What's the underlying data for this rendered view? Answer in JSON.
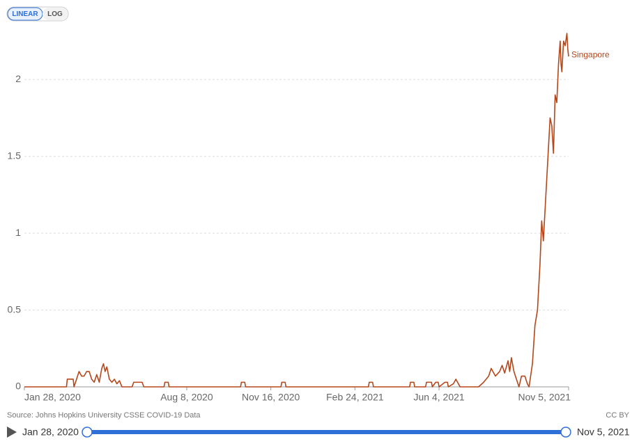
{
  "controls": {
    "scale_buttons": [
      "LINEAR",
      "LOG"
    ],
    "source": "Source: Johns Hopkins University CSSE COVID-19 Data",
    "license": "CC BY",
    "timeline": {
      "start": "Jan 28, 2020",
      "end": "Nov 5, 2021"
    }
  },
  "chart_data": {
    "type": "line",
    "y_scale": "linear",
    "grid": true,
    "xlim": [
      "2020-01-28",
      "2021-11-05"
    ],
    "ylim": [
      0,
      2.3
    ],
    "yticks": [
      0,
      0.5,
      1,
      1.5,
      2
    ],
    "xticks": [
      {
        "value": "2020-01-28",
        "label": "Jan 28, 2020"
      },
      {
        "value": "2020-08-08",
        "label": "Aug 8, 2020"
      },
      {
        "value": "2020-11-16",
        "label": "Nov 16, 2020"
      },
      {
        "value": "2021-02-24",
        "label": "Feb 24, 2021"
      },
      {
        "value": "2021-06-04",
        "label": "Jun 4, 2021"
      },
      {
        "value": "2021-11-05",
        "label": "Nov 5, 2021"
      }
    ],
    "x": [
      "2020-01-28",
      "2020-03-18",
      "2020-03-19",
      "2020-03-26",
      "2020-03-27",
      "2020-03-30",
      "2020-04-02",
      "2020-04-05",
      "2020-04-08",
      "2020-04-11",
      "2020-04-14",
      "2020-04-17",
      "2020-04-20",
      "2020-04-23",
      "2020-04-26",
      "2020-04-29",
      "2020-05-01",
      "2020-05-03",
      "2020-05-05",
      "2020-05-08",
      "2020-05-11",
      "2020-05-14",
      "2020-05-17",
      "2020-05-20",
      "2020-05-23",
      "2020-06-04",
      "2020-06-06",
      "2020-06-16",
      "2020-06-18",
      "2020-07-12",
      "2020-07-13",
      "2020-07-17",
      "2020-07-18",
      "2020-10-11",
      "2020-10-12",
      "2020-10-16",
      "2020-10-17",
      "2020-11-28",
      "2020-11-29",
      "2020-12-03",
      "2020-12-04",
      "2021-03-12",
      "2021-03-13",
      "2021-03-17",
      "2021-03-18",
      "2021-04-30",
      "2021-05-01",
      "2021-05-05",
      "2021-05-06",
      "2021-05-19",
      "2021-05-20",
      "2021-05-26",
      "2021-05-27",
      "2021-05-31",
      "2021-06-03",
      "2021-06-04",
      "2021-06-11",
      "2021-06-14",
      "2021-06-15",
      "2021-06-21",
      "2021-06-24",
      "2021-06-27",
      "2021-06-29",
      "2021-07-21",
      "2021-07-27",
      "2021-08-02",
      "2021-08-05",
      "2021-08-10",
      "2021-08-15",
      "2021-08-18",
      "2021-08-21",
      "2021-08-25",
      "2021-08-27",
      "2021-08-29",
      "2021-09-01",
      "2021-09-04",
      "2021-09-07",
      "2021-09-10",
      "2021-09-14",
      "2021-09-17",
      "2021-09-19",
      "2021-09-23",
      "2021-09-26",
      "2021-09-29",
      "2021-10-02",
      "2021-10-04",
      "2021-10-06",
      "2021-10-09",
      "2021-10-12",
      "2021-10-14",
      "2021-10-16",
      "2021-10-18",
      "2021-10-20",
      "2021-10-22",
      "2021-10-24",
      "2021-10-26",
      "2021-10-27",
      "2021-10-28",
      "2021-10-30",
      "2021-11-01",
      "2021-11-03",
      "2021-11-04",
      "2021-11-05"
    ],
    "series": [
      {
        "name": "Singapore",
        "color": "#b5461a",
        "values": [
          0,
          0,
          0.05,
          0.05,
          0,
          0.05,
          0.1,
          0.07,
          0.07,
          0.1,
          0.1,
          0.05,
          0.03,
          0.08,
          0.03,
          0.12,
          0.15,
          0.1,
          0.13,
          0.05,
          0.03,
          0.05,
          0.02,
          0.04,
          0,
          0,
          0.03,
          0.03,
          0,
          0,
          0.03,
          0.03,
          0,
          0,
          0.03,
          0.03,
          0,
          0,
          0.03,
          0.03,
          0,
          0,
          0.03,
          0.03,
          0,
          0,
          0.03,
          0.03,
          0,
          0,
          0.03,
          0.03,
          0,
          0.03,
          0.03,
          0,
          0.03,
          0.03,
          0,
          0.02,
          0.05,
          0.02,
          0,
          0,
          0.03,
          0.07,
          0.12,
          0.07,
          0.1,
          0.14,
          0.09,
          0.17,
          0.1,
          0.19,
          0.1,
          0.05,
          0,
          0.07,
          0.07,
          0.02,
          0,
          0.15,
          0.4,
          0.5,
          0.8,
          1.08,
          0.95,
          1.25,
          1.55,
          1.75,
          1.7,
          1.52,
          1.9,
          1.85,
          2.1,
          2.25,
          2.1,
          2.05,
          2.25,
          2.22,
          2.3,
          2.2,
          2.15
        ]
      }
    ]
  }
}
